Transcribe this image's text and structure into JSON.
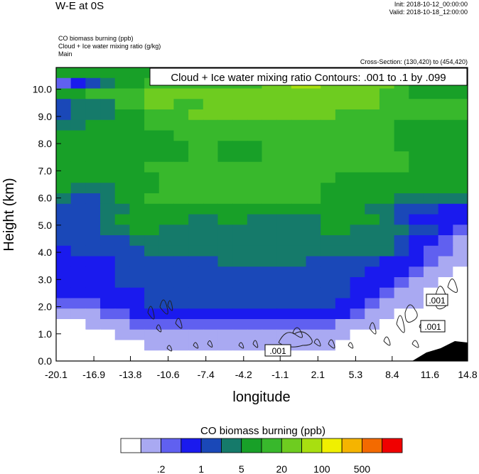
{
  "header": {
    "title": "W-E at 0S",
    "init": "Init: 2018-10-12_00:00:00",
    "valid": "Valid: 2018-10-18_12:00:00",
    "field1": "CO biomass burning   (ppb)",
    "field2": "Cloud + Ice water mixing ratio   (g/kg)",
    "field3": "Main",
    "cross_section": "Cross-Section: (130,420) to (454,420)"
  },
  "chart_data": {
    "type": "heatmap",
    "title": "",
    "xlabel": "longitude",
    "ylabel": "Height (km)",
    "xlim": [
      -20.1,
      14.8
    ],
    "ylim": [
      0,
      10.8
    ],
    "x_ticks": [
      "-20.1",
      "-16.9",
      "-13.8",
      "-10.6",
      "-7.4",
      "-4.2",
      "-1.1",
      "2.1",
      "5.3",
      "8.4",
      "11.6",
      "14.8"
    ],
    "y_ticks": [
      "0.0",
      "1.0",
      "2.0",
      "3.0",
      "4.0",
      "5.0",
      "6.0",
      "7.0",
      "8.0",
      "9.0",
      "10.0"
    ],
    "contour_annotation": "Cloud + Ice water mixing ratio Contours: .001 to .1 by .099",
    "contour_labels": [
      ".001",
      ".001",
      ".001"
    ],
    "colorbar": {
      "title": "CO biomass burning  (ppb)",
      "tick_labels": [
        ".2",
        "1",
        "5",
        "20",
        "100",
        "500"
      ],
      "colors": [
        "#ffffff",
        "#a9a9f2",
        "#6060f0",
        "#1a1aee",
        "#1a48b8",
        "#157a6a",
        "#18a028",
        "#38b82c",
        "#6ecc20",
        "#a8df10",
        "#f0f000",
        "#f5b400",
        "#f36a00",
        "#f00000"
      ]
    },
    "level_grid": [
      "6666666666666666666666666666",
      "2345667777777788998888876666",
      "6677778888888888888888776666",
      "4555778877888888888888777777",
      "4555667778888888888777777777",
      "5566667777777777777777766666",
      "6666666677777777777777766666",
      "6666666667766677777777766666",
      "6666666667766677777777776666",
      "6666667777777777777777776666",
      "6666666777777777777666666666",
      "6555666777777777776666666666",
      "5445667777777777776666655555",
      "4445566666666666666665544433",
      "4445666665566555556666543333",
      "4445566555555555556655554432",
      "4444455555555555555555543321",
      "3444445555555555555555543221",
      "3333444444455555544444333211",
      "3333444444444444444443332110",
      "3333444444444444444433321100",
      "3333334444444444444433211000",
      "2223334444444444444332111000",
      "1112233333333333333321100000",
      "0011122222222222222111000000",
      "0000111111111111111100000000",
      "0000001111111111111000000000",
      "0000000000000000000000000000"
    ]
  }
}
